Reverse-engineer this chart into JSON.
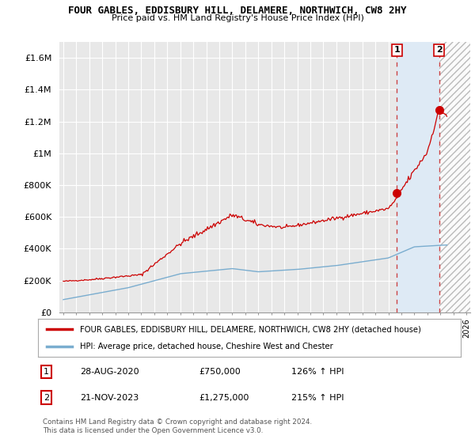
{
  "title": "FOUR GABLES, EDDISBURY HILL, DELAMERE, NORTHWICH, CW8 2HY",
  "subtitle": "Price paid vs. HM Land Registry's House Price Index (HPI)",
  "ylim": [
    0,
    1700000
  ],
  "yticks": [
    0,
    200000,
    400000,
    600000,
    800000,
    1000000,
    1200000,
    1400000,
    1600000
  ],
  "ytick_labels": [
    "£0",
    "£200K",
    "£400K",
    "£600K",
    "£800K",
    "£1M",
    "£1.2M",
    "£1.4M",
    "£1.6M"
  ],
  "xlim_start": 1994.7,
  "xlim_end": 2026.3,
  "background_color": "#ffffff",
  "plot_bg_color": "#e8e8e8",
  "grid_color": "#ffffff",
  "red_line_color": "#cc0000",
  "blue_line_color": "#7aadcf",
  "shade_between_color": "#deeaf5",
  "transaction1_x": 2020.65,
  "transaction1_y": 750000,
  "transaction2_x": 2023.9,
  "transaction2_y": 1275000,
  "transaction1_label": "1",
  "transaction2_label": "2",
  "dashed_color": "#cc4444",
  "legend_line1": "FOUR GABLES, EDDISBURY HILL, DELAMERE, NORTHWICH, CW8 2HY (detached house)",
  "legend_line2": "HPI: Average price, detached house, Cheshire West and Chester",
  "table_row1": [
    "1",
    "28-AUG-2020",
    "£750,000",
    "126% ↑ HPI"
  ],
  "table_row2": [
    "2",
    "21-NOV-2023",
    "£1,275,000",
    "215% ↑ HPI"
  ],
  "footer": "Contains HM Land Registry data © Crown copyright and database right 2024.\nThis data is licensed under the Open Government Licence v3.0."
}
